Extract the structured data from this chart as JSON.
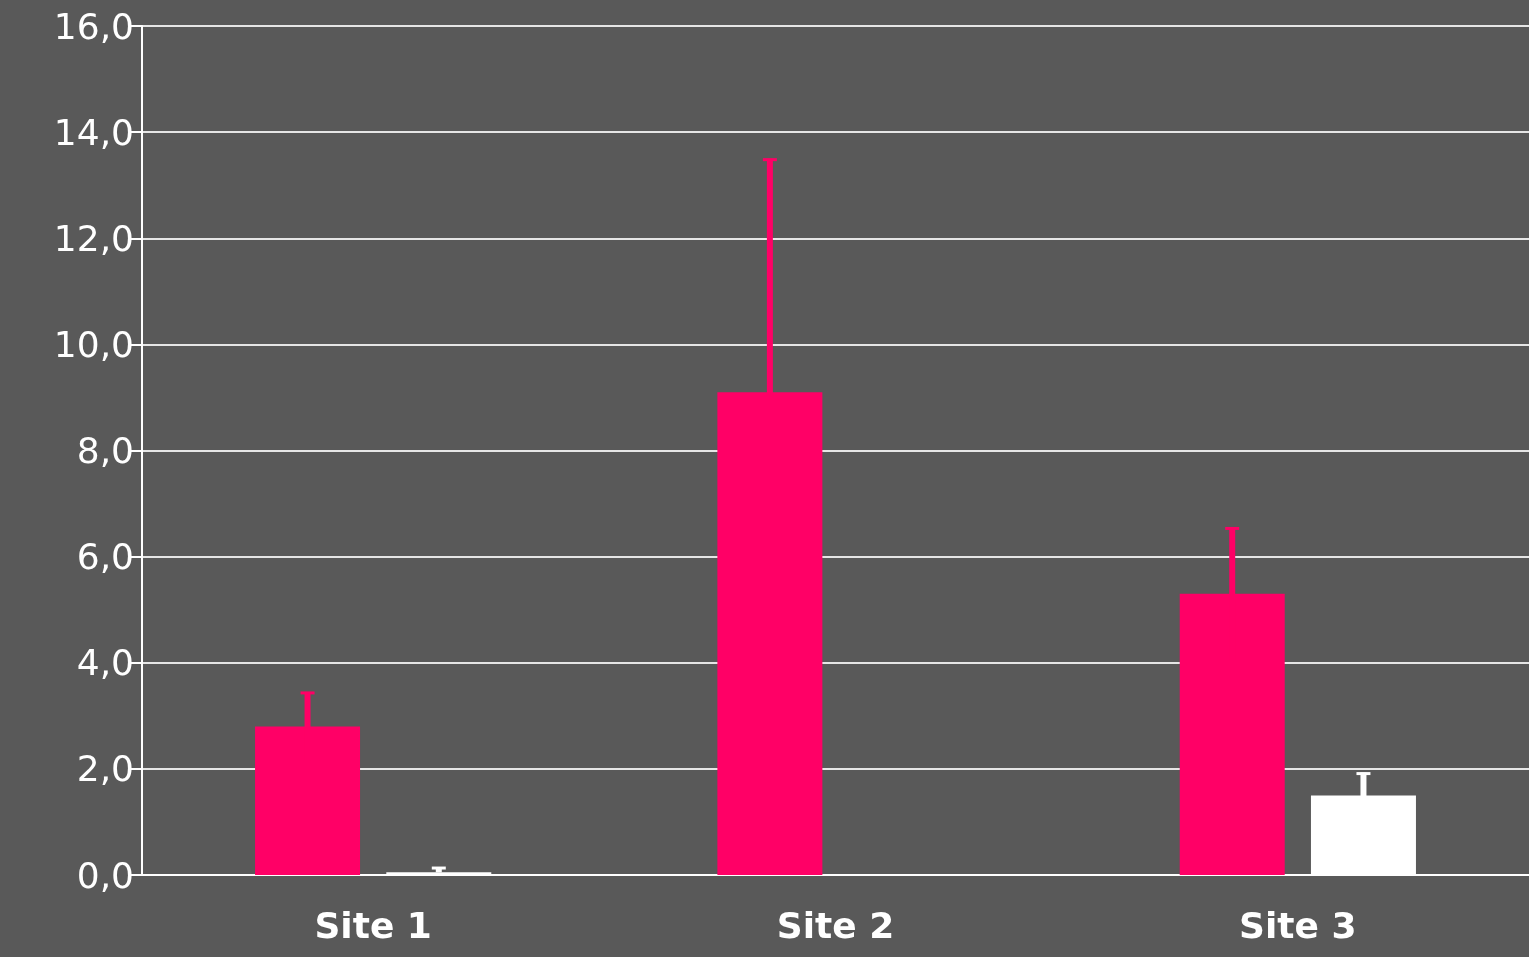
{
  "chart_data": {
    "type": "bar",
    "categories": [
      "Site 1",
      "Site 2",
      "Site 3"
    ],
    "series": [
      {
        "color": "#ff0066",
        "values": [
          2.8,
          9.1,
          5.3
        ],
        "errors": [
          0.65,
          4.4,
          1.25
        ]
      },
      {
        "color": "#ffffff",
        "values": [
          0.05,
          0.02,
          1.5
        ],
        "errors": [
          [
            0.05,
            0.15
          ],
          null,
          0.43
        ]
      }
    ],
    "ylim": [
      0,
      16
    ],
    "yticks": [
      {
        "value": 0,
        "label": "0,0"
      },
      {
        "value": 2,
        "label": "2,0"
      },
      {
        "value": 4,
        "label": "4,0"
      },
      {
        "value": 6,
        "label": "6,0"
      },
      {
        "value": 8,
        "label": "8,0"
      },
      {
        "value": 10,
        "label": "10,0"
      },
      {
        "value": 12,
        "label": "12,0"
      },
      {
        "value": 14,
        "label": "14,0"
      },
      {
        "value": 16,
        "label": "16,0"
      }
    ],
    "grid": "y"
  }
}
